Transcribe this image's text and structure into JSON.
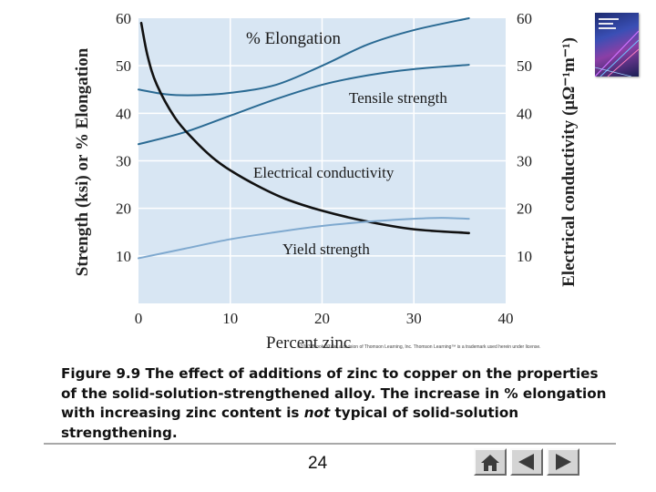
{
  "chart_data": {
    "type": "line",
    "title": "",
    "xlabel": "Percent zinc",
    "ylabel_left": "Strength (ksi) or % Elongation",
    "ylabel_right": "Electrical conductivity (μΩ⁻¹m⁻¹)",
    "xlim": [
      0,
      40
    ],
    "ylim": [
      0,
      60
    ],
    "x_ticks": [
      "0",
      "10",
      "20",
      "30",
      "40"
    ],
    "y_ticks": [
      "10",
      "20",
      "30",
      "40",
      "50",
      "60"
    ],
    "grid": true,
    "legend": "none (curves labeled directly)",
    "series": [
      {
        "name": "% Elongation",
        "color": "#2a6a93",
        "x": [
          0,
          3,
          6,
          10,
          15,
          20,
          25,
          30,
          36
        ],
        "y": [
          45,
          44,
          43.8,
          44.3,
          46,
          50,
          54.5,
          57.5,
          60
        ]
      },
      {
        "name": "Tensile strength",
        "color": "#2a6a93",
        "x": [
          0,
          5,
          10,
          15,
          20,
          25,
          30,
          36
        ],
        "y": [
          33.5,
          36,
          39.5,
          43,
          46,
          48,
          49.3,
          50.2
        ]
      },
      {
        "name": "Electrical conductivity",
        "color": "#111111",
        "x": [
          0.3,
          1,
          2,
          4,
          6,
          8,
          10,
          13,
          16,
          20,
          25,
          30,
          36
        ],
        "y": [
          59,
          52,
          46,
          39,
          34.5,
          30.8,
          28,
          24.7,
          22,
          19.5,
          17.2,
          15.6,
          14.8
        ]
      },
      {
        "name": "Yield strength",
        "color": "#7fa9cf",
        "x": [
          0,
          5,
          10,
          15,
          20,
          25,
          30,
          33,
          36
        ],
        "y": [
          9.5,
          11.5,
          13.5,
          15,
          16.3,
          17.2,
          17.8,
          18,
          17.8
        ]
      }
    ],
    "annotations": [
      "% Elongation",
      "Tensile strength",
      "Electrical conductivity",
      "Yield strength"
    ]
  },
  "copyright": "©2003 Brooks/Cole, a division of Thomson Learning, Inc.  Thomson Learning™ is a trademark used herein under license.",
  "caption": {
    "part1": "Figure 9.9  The effect of additions of zinc to copper on the properties of the solid-solution-strengthened alloy.  The increase in % elongation with increasing zinc content is ",
    "emph": "not",
    "part2": " typical of solid-solution strengthening."
  },
  "page_number": "24",
  "nav_buttons": [
    "home-icon",
    "back-icon",
    "forward-icon"
  ],
  "colors": {
    "plot_bg": "#d8e6f3",
    "grid": "#ffffff",
    "accent": "#2a6a93"
  }
}
